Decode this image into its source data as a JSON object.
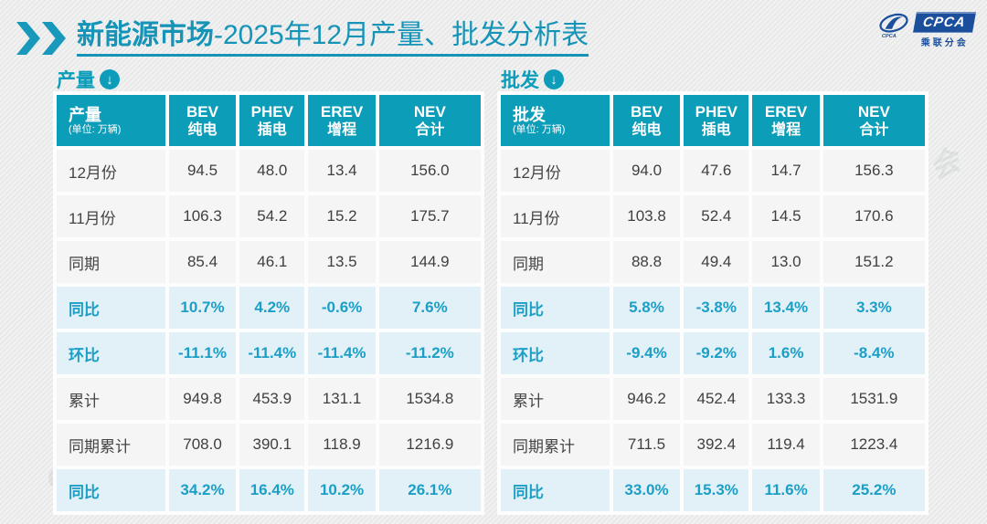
{
  "ui": {
    "title": {
      "bold": "新能源市场",
      "rest": "-2025年12月产量、批发分析表"
    },
    "logo": {
      "brand": "CPCA",
      "subtitle": "乘联分会"
    },
    "watermark_text": "CPCA 乘联分会",
    "arrow_glyph": "↓"
  },
  "colors": {
    "accent_teal": "#0d9cba",
    "title_teal": "#1694b8",
    "highlight_text": "#1b9fc6",
    "highlight_row_bg": "#e2f0f7",
    "cell_bg": "#f4f5f4",
    "logo_blue": "#1b4e9b"
  },
  "chart_data": [
    {
      "type": "table",
      "name": "产量",
      "unit_note": "(单位: 万辆)",
      "columns": [
        {
          "line1": "BEV",
          "line2": "纯电"
        },
        {
          "line1": "PHEV",
          "line2": "插电"
        },
        {
          "line1": "EREV",
          "line2": "增程"
        },
        {
          "line1": "NEV",
          "line2": "合计"
        }
      ],
      "rows": [
        {
          "label": "12月份",
          "highlight": false,
          "values": [
            "94.5",
            "48.0",
            "13.4",
            "156.0"
          ]
        },
        {
          "label": "11月份",
          "highlight": false,
          "values": [
            "106.3",
            "54.2",
            "15.2",
            "175.7"
          ]
        },
        {
          "label": "同期",
          "highlight": false,
          "values": [
            "85.4",
            "46.1",
            "13.5",
            "144.9"
          ]
        },
        {
          "label": "同比",
          "highlight": true,
          "values": [
            "10.7%",
            "4.2%",
            "-0.6%",
            "7.6%"
          ]
        },
        {
          "label": "环比",
          "highlight": true,
          "values": [
            "-11.1%",
            "-11.4%",
            "-11.4%",
            "-11.2%"
          ]
        },
        {
          "label": "累计",
          "highlight": false,
          "values": [
            "949.8",
            "453.9",
            "131.1",
            "1534.8"
          ]
        },
        {
          "label": "同期累计",
          "highlight": false,
          "values": [
            "708.0",
            "390.1",
            "118.9",
            "1216.9"
          ]
        },
        {
          "label": "同比",
          "highlight": true,
          "values": [
            "34.2%",
            "16.4%",
            "10.2%",
            "26.1%"
          ]
        }
      ]
    },
    {
      "type": "table",
      "name": "批发",
      "unit_note": "(单位: 万辆)",
      "columns": [
        {
          "line1": "BEV",
          "line2": "纯电"
        },
        {
          "line1": "PHEV",
          "line2": "插电"
        },
        {
          "line1": "EREV",
          "line2": "增程"
        },
        {
          "line1": "NEV",
          "line2": "合计"
        }
      ],
      "rows": [
        {
          "label": "12月份",
          "highlight": false,
          "values": [
            "94.0",
            "47.6",
            "14.7",
            "156.3"
          ]
        },
        {
          "label": "11月份",
          "highlight": false,
          "values": [
            "103.8",
            "52.4",
            "14.5",
            "170.6"
          ]
        },
        {
          "label": "同期",
          "highlight": false,
          "values": [
            "88.8",
            "49.4",
            "13.0",
            "151.2"
          ]
        },
        {
          "label": "同比",
          "highlight": true,
          "values": [
            "5.8%",
            "-3.8%",
            "13.4%",
            "3.3%"
          ]
        },
        {
          "label": "环比",
          "highlight": true,
          "values": [
            "-9.4%",
            "-9.2%",
            "1.6%",
            "-8.4%"
          ]
        },
        {
          "label": "累计",
          "highlight": false,
          "values": [
            "946.2",
            "452.4",
            "133.3",
            "1531.9"
          ]
        },
        {
          "label": "同期累计",
          "highlight": false,
          "values": [
            "711.5",
            "392.4",
            "119.4",
            "1223.4"
          ]
        },
        {
          "label": "同比",
          "highlight": true,
          "values": [
            "33.0%",
            "15.3%",
            "11.6%",
            "25.2%"
          ]
        }
      ]
    }
  ]
}
